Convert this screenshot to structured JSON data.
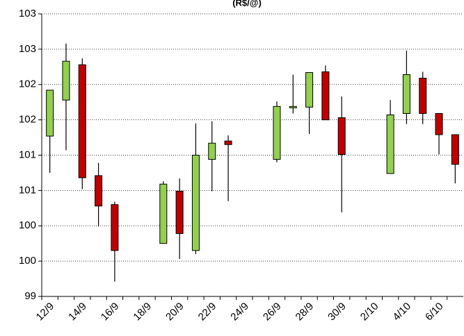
{
  "chart_data": {
    "type": "candlestick",
    "title": "(R$/@)",
    "categories": [
      "12/9",
      null,
      "14/9",
      null,
      "16/9",
      null,
      "18/9",
      null,
      "20/9",
      null,
      "22/9",
      null,
      "24/9",
      null,
      "26/9",
      null,
      "28/9",
      null,
      "30/9",
      null,
      "2/10",
      null,
      "4/10",
      null,
      "6/10",
      null
    ],
    "open": [
      101.27,
      101.78,
      102.28,
      100.71,
      100.3,
      null,
      null,
      99.75,
      100.49,
      99.65,
      100.94,
      101.2,
      null,
      null,
      100.94,
      101.67,
      101.68,
      102.18,
      101.53,
      null,
      null,
      100.74,
      101.59,
      102.09,
      101.59,
      101.29
    ],
    "high": [
      101.92,
      102.58,
      102.37,
      100.89,
      100.34,
      null,
      null,
      100.63,
      100.67,
      101.45,
      101.48,
      101.28,
      null,
      null,
      101.76,
      102.14,
      102.17,
      102.27,
      101.83,
      null,
      null,
      101.78,
      102.48,
      102.18,
      101.59,
      101.29
    ],
    "low": [
      100.75,
      101.07,
      100.52,
      99.99,
      99.21,
      null,
      null,
      99.75,
      99.53,
      99.6,
      100.49,
      100.35,
      null,
      null,
      100.9,
      101.59,
      101.3,
      101.5,
      100.19,
      null,
      null,
      100.74,
      101.44,
      101.44,
      101.01,
      100.6
    ],
    "close": [
      101.92,
      102.33,
      100.68,
      100.28,
      99.65,
      null,
      null,
      100.59,
      99.89,
      101.0,
      101.17,
      101.15,
      null,
      null,
      101.69,
      101.69,
      102.17,
      101.5,
      101.01,
      null,
      null,
      101.57,
      102.14,
      101.59,
      101.29,
      100.87
    ],
    "up_color": "#92d050",
    "down_color": "#c00000",
    "ylim": [
      99,
      103
    ],
    "yticks": [
      99,
      {
        "value": 99.5,
        "label": "100"
      },
      100,
      {
        "value": 100.5,
        "label": "101"
      },
      101,
      {
        "value": 101.5,
        "label": "102"
      },
      102,
      {
        "value": 102.5,
        "label": "103"
      },
      103
    ],
    "grid": true
  }
}
